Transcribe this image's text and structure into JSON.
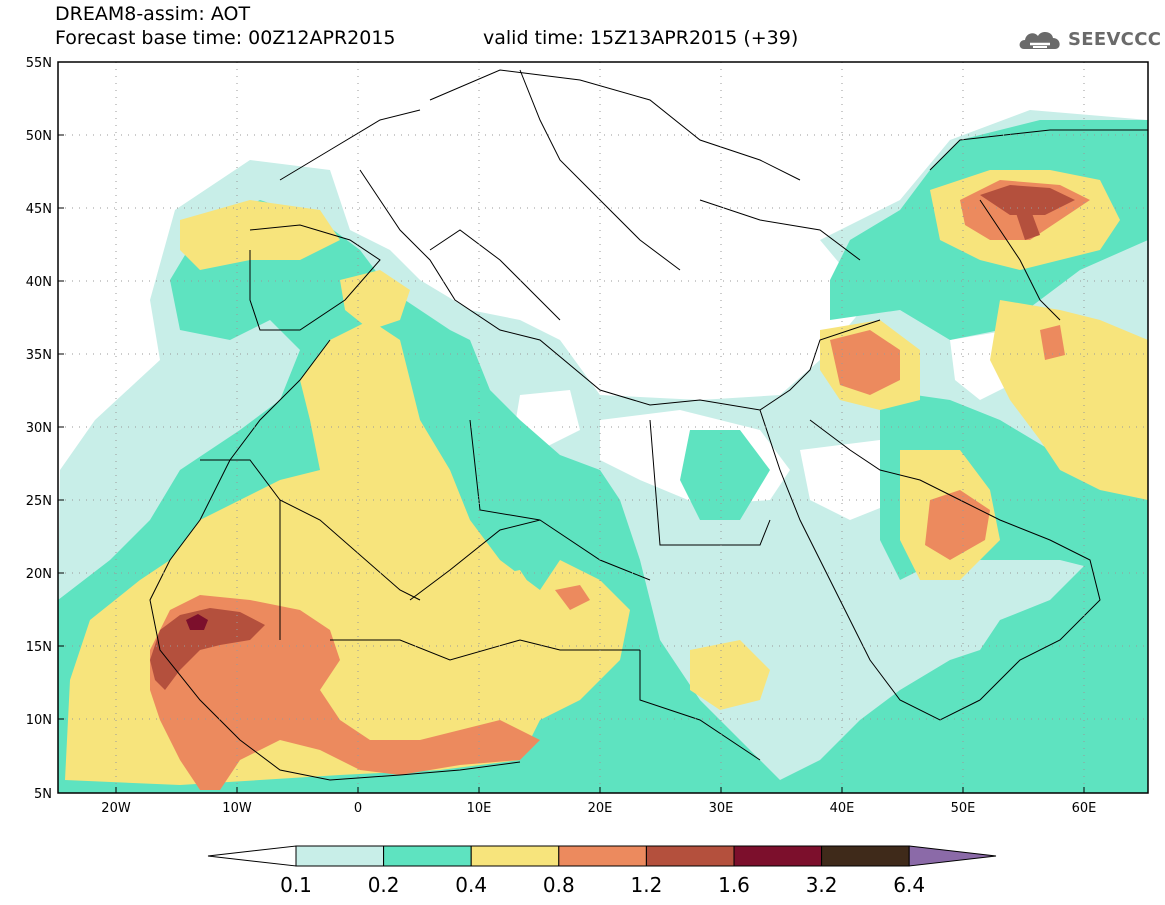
{
  "header": {
    "title": "DREAM8-assim: AOT",
    "base_time": "Forecast base time: 00Z12APR2015",
    "valid_time": "valid time: 15Z13APR2015 (+39)",
    "logo_text": "SEEVCCC",
    "logo_icon": "cloud-icon"
  },
  "map": {
    "lat_labels": [
      "55N",
      "50N",
      "45N",
      "40N",
      "35N",
      "30N",
      "25N",
      "20N",
      "15N",
      "10N",
      "5N"
    ],
    "lon_labels": [
      "20W",
      "10W",
      "0",
      "10E",
      "20E",
      "30E",
      "40E",
      "50E",
      "60E"
    ],
    "lat_range": [
      5,
      55
    ],
    "lon_range": [
      -25,
      65
    ],
    "grid": "dotted"
  },
  "colorbar": {
    "labels": [
      "0.1",
      "0.2",
      "0.4",
      "0.8",
      "1.2",
      "1.6",
      "3.2",
      "6.4"
    ],
    "colors": [
      "#ffffff",
      "#c8eee8",
      "#5ee3c0",
      "#f7e47c",
      "#ec8a5e",
      "#b4503d",
      "#7c0f2c",
      "#3f2a1a",
      "#8b6aa8"
    ]
  }
}
